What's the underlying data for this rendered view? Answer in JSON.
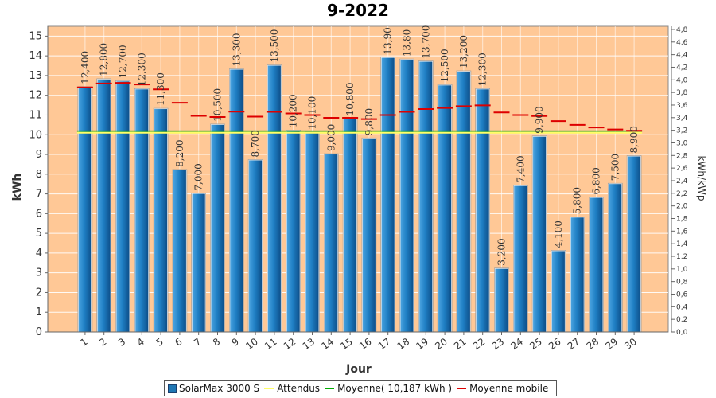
{
  "chart_data": {
    "type": "bar",
    "title": "9-2022",
    "xlabel": "Jour",
    "ylabel": "kWh",
    "y2label": "kWh/kWp",
    "ylim": [
      0,
      15.5
    ],
    "y2lim": [
      0,
      4.85
    ],
    "yticks": [
      0,
      1,
      2,
      3,
      4,
      5,
      6,
      7,
      8,
      9,
      10,
      11,
      12,
      13,
      14,
      15
    ],
    "y2ticks": [
      "0,0",
      "0,2",
      "0,4",
      "0,6",
      "0,8",
      "1,0",
      "1,2",
      "1,4",
      "1,6",
      "1,8",
      "2,0",
      "2,2",
      "2,4",
      "2,6",
      "2,8",
      "3,0",
      "3,2",
      "3,4",
      "3,6",
      "3,8",
      "4,0",
      "4,2",
      "4,4",
      "4,6",
      "4,8"
    ],
    "categories": [
      "1",
      "2",
      "3",
      "4",
      "5",
      "6",
      "7",
      "8",
      "9",
      "10",
      "11",
      "12",
      "13",
      "14",
      "15",
      "16",
      "17",
      "18",
      "19",
      "20",
      "21",
      "22",
      "23",
      "24",
      "25",
      "26",
      "27",
      "28",
      "29",
      "30"
    ],
    "series": [
      {
        "name": "SolarMax 3000 S",
        "type": "bar",
        "color": "#1f77b4",
        "values": [
          12.4,
          12.8,
          12.7,
          12.3,
          11.3,
          8.2,
          7.0,
          10.5,
          13.3,
          8.7,
          13.5,
          10.2,
          10.1,
          9.0,
          10.8,
          9.8,
          13.9,
          13.8,
          13.7,
          12.5,
          13.2,
          12.3,
          3.2,
          7.4,
          9.9,
          4.1,
          5.8,
          6.8,
          7.5,
          8.9
        ],
        "labels": [
          "12,400",
          "12,800",
          "12,700",
          "12,300",
          "11,300",
          "8,200",
          "7,000",
          "10,500",
          "13,300",
          "8,700",
          "13,500",
          "10,200",
          "10,100",
          "9,000",
          "10,800",
          "9,800",
          "13,90",
          "13,80",
          "13,700",
          "12,500",
          "13,200",
          "12,300",
          "3,200",
          "7,400",
          "9,900",
          "4,100",
          "5,800",
          "6,800",
          "7,500",
          "8,900"
        ]
      },
      {
        "name": "Attendus",
        "type": "line",
        "color": "#ffff66",
        "value": 10.1
      },
      {
        "name": "Moyenne( 10,187 kWh )",
        "type": "line",
        "color": "#00aa00",
        "value": 10.187
      },
      {
        "name": "Moyenne mobile",
        "type": "step",
        "color": "#dd0000",
        "values": [
          12.4,
          12.6,
          12.63,
          12.55,
          12.3,
          11.62,
          10.96,
          10.9,
          11.17,
          10.92,
          11.16,
          11.08,
          11.0,
          10.86,
          10.86,
          10.79,
          11.0,
          11.16,
          11.3,
          11.36,
          11.45,
          11.49,
          11.13,
          11.0,
          10.95,
          10.69,
          10.5,
          10.37,
          10.27,
          10.2
        ]
      }
    ],
    "grid": true,
    "legend": "bottom"
  }
}
